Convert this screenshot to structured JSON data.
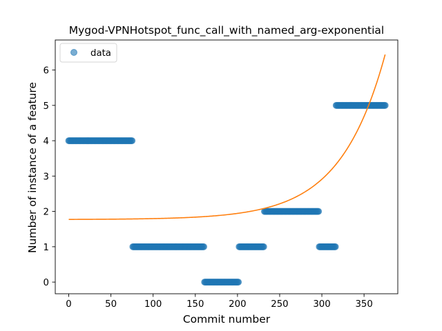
{
  "chart_data": {
    "type": "scatter",
    "title": "Mygod-VPNHotspot_func_call_with_named_arg-exponential",
    "xlabel": "Commit number",
    "ylabel": "Number of instance of a feature",
    "xlim": [
      -16,
      390
    ],
    "ylim": [
      -0.33,
      6.85
    ],
    "xticks": [
      0,
      50,
      100,
      150,
      200,
      250,
      300,
      350
    ],
    "yticks": [
      0,
      1,
      2,
      3,
      4,
      5,
      6
    ],
    "legend": {
      "position": "top-left",
      "entries": [
        "data"
      ]
    },
    "grid": false,
    "colors": {
      "data": "#1f77b4",
      "fit": "#ff7f0e"
    },
    "series": [
      {
        "name": "data",
        "kind": "points",
        "segments": [
          {
            "x_start": 0,
            "x_end": 75,
            "y": 4
          },
          {
            "x_start": 76,
            "x_end": 160,
            "y": 1
          },
          {
            "x_start": 161,
            "x_end": 201,
            "y": 0
          },
          {
            "x_start": 202,
            "x_end": 231,
            "y": 1
          },
          {
            "x_start": 232,
            "x_end": 296,
            "y": 2
          },
          {
            "x_start": 297,
            "x_end": 316,
            "y": 1
          },
          {
            "x_start": 317,
            "x_end": 375,
            "y": 5
          }
        ]
      },
      {
        "kind": "fit-line",
        "model": "y = a * exp(b * x) + c",
        "params": {
          "a": 0.00405,
          "b": 0.0188,
          "c": 1.77
        },
        "x_range": [
          0,
          375
        ]
      }
    ]
  }
}
